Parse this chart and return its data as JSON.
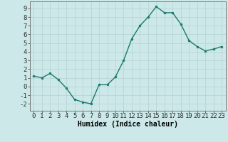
{
  "x": [
    0,
    1,
    2,
    3,
    4,
    5,
    6,
    7,
    8,
    9,
    10,
    11,
    12,
    13,
    14,
    15,
    16,
    17,
    18,
    19,
    20,
    21,
    22,
    23
  ],
  "y": [
    1.2,
    1.0,
    1.5,
    0.8,
    -0.2,
    -1.5,
    -1.8,
    -2.0,
    0.2,
    0.2,
    1.1,
    3.0,
    5.5,
    7.0,
    8.0,
    9.2,
    8.5,
    8.5,
    7.2,
    5.3,
    4.6,
    4.1,
    4.3,
    4.6
  ],
  "line_color": "#1a7a6e",
  "marker_color": "#1a7a6e",
  "bg_color": "#cce8e8",
  "grid_color": "#b8d4d4",
  "xlabel": "Humidex (Indice chaleur)",
  "xlim": [
    -0.5,
    23.5
  ],
  "ylim": [
    -2.8,
    9.8
  ],
  "yticks": [
    -2,
    -1,
    0,
    1,
    2,
    3,
    4,
    5,
    6,
    7,
    8,
    9
  ],
  "xticks": [
    0,
    1,
    2,
    3,
    4,
    5,
    6,
    7,
    8,
    9,
    10,
    11,
    12,
    13,
    14,
    15,
    16,
    17,
    18,
    19,
    20,
    21,
    22,
    23
  ],
  "xlabel_fontsize": 7,
  "tick_fontsize": 6.5
}
